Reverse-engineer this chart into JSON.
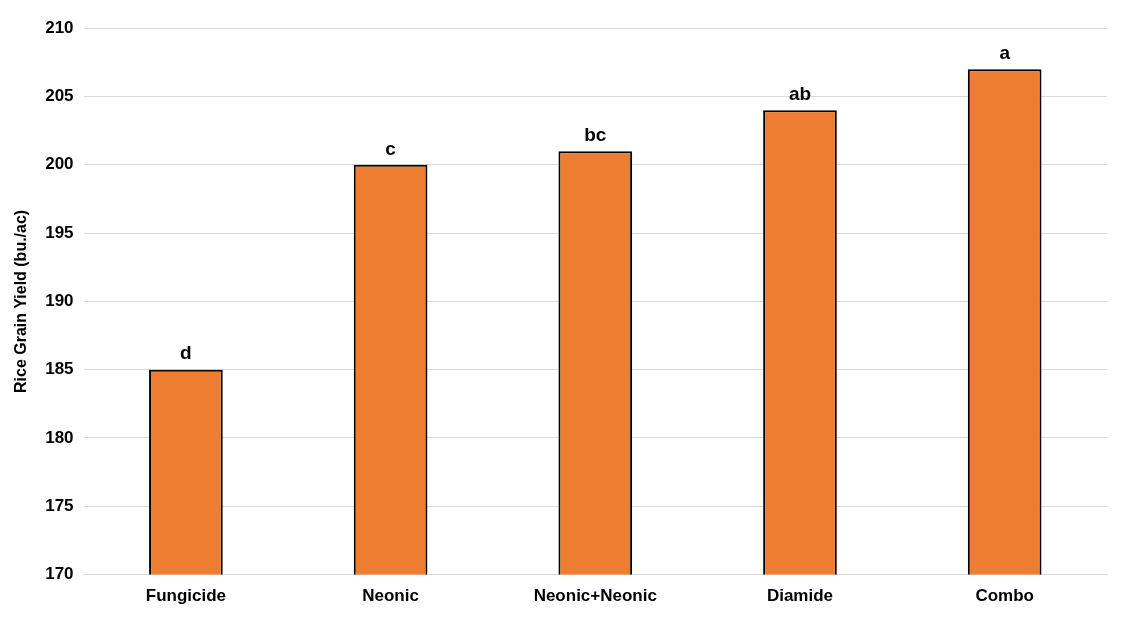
{
  "chart_data": {
    "type": "bar",
    "ylabel": "Rice Grain Yield (bu./ac)",
    "categories": [
      "Fungicide",
      "Neonic",
      "Neonic+Neonic",
      "Diamide",
      "Combo"
    ],
    "values": [
      185,
      200,
      201,
      204,
      207
    ],
    "color": "#ed7d31",
    "ylim": [
      170,
      210
    ],
    "yticks": [
      170,
      175,
      180,
      185,
      190,
      195,
      200,
      205,
      210
    ],
    "grid": "y",
    "annotations": [
      {
        "text": "d",
        "x": "Fungicide",
        "y": 185
      },
      {
        "text": "c",
        "x": "Neonic",
        "y": 200
      },
      {
        "text": "bc",
        "x": "Neonic+Neonic",
        "y": 201
      },
      {
        "text": "ab",
        "x": "Diamide",
        "y": 204
      },
      {
        "text": "a",
        "x": "Combo",
        "y": 207
      }
    ]
  }
}
